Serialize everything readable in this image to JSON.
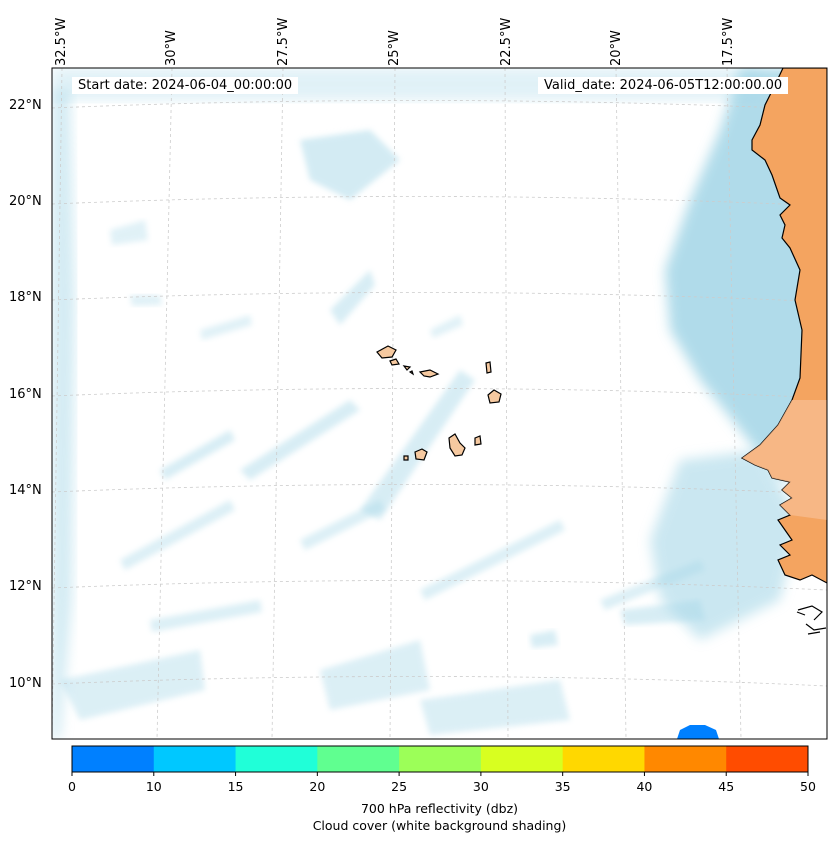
{
  "info": {
    "start_date": "Start date: 2024-06-04_00:00:00",
    "valid_date": "Valid_date: 2024-06-05T12:00:00.00"
  },
  "lon_labels": [
    "32.5°W",
    "30°W",
    "27.5°W",
    "25°W",
    "22.5°W",
    "20°W",
    "17.5°W"
  ],
  "lat_labels": [
    "22°N",
    "20°N",
    "18°N",
    "16°N",
    "14°N",
    "12°N",
    "10°N"
  ],
  "colorbar": {
    "ticks": [
      "0",
      "10",
      "15",
      "20",
      "25",
      "30",
      "35",
      "40",
      "45",
      "50"
    ],
    "colors": [
      "#0080ff",
      "#00c8ff",
      "#20ffd8",
      "#60ff90",
      "#9cff58",
      "#d8ff20",
      "#ffd800",
      "#ff8800",
      "#ff4c00"
    ],
    "label_line1": "700 hPa reflectivity (dbz)",
    "label_line2": "Cloud cover (white background shading)"
  },
  "colors": {
    "land_africa": "#f4a460",
    "land_islands": "#f6c9a0",
    "cloud": "#a8d8e8",
    "gridline": "#cccccc"
  }
}
